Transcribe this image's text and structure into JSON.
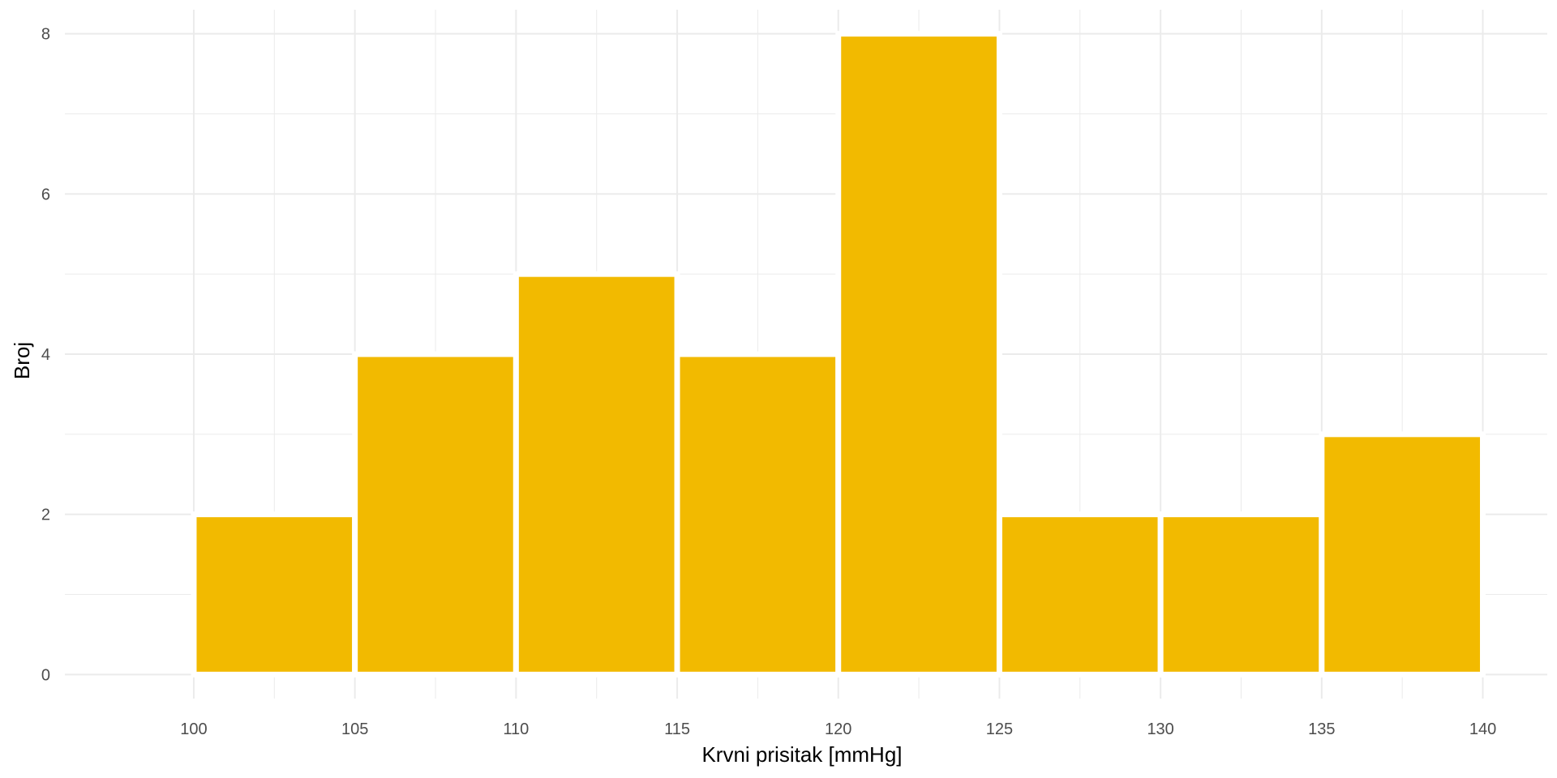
{
  "chart_data": {
    "type": "bar",
    "title": "",
    "xlabel": "Krvni prisitak [mmHg]",
    "ylabel": "Broj",
    "bin_edges": [
      100,
      105,
      110,
      115,
      120,
      125,
      130,
      135,
      140
    ],
    "values": [
      2,
      4,
      5,
      4,
      8,
      2,
      2,
      3
    ],
    "xlim": [
      96,
      142
    ],
    "ylim": [
      -0.3,
      8.3
    ],
    "x_ticks": [
      100,
      105,
      110,
      115,
      120,
      125,
      130,
      135,
      140
    ],
    "y_ticks": [
      0,
      2,
      4,
      6,
      8
    ],
    "grid": true,
    "legend": "none",
    "colors": {
      "bar": "#F2BA00",
      "grid": "#EBEBEB",
      "background": "#FFFFFF"
    }
  }
}
